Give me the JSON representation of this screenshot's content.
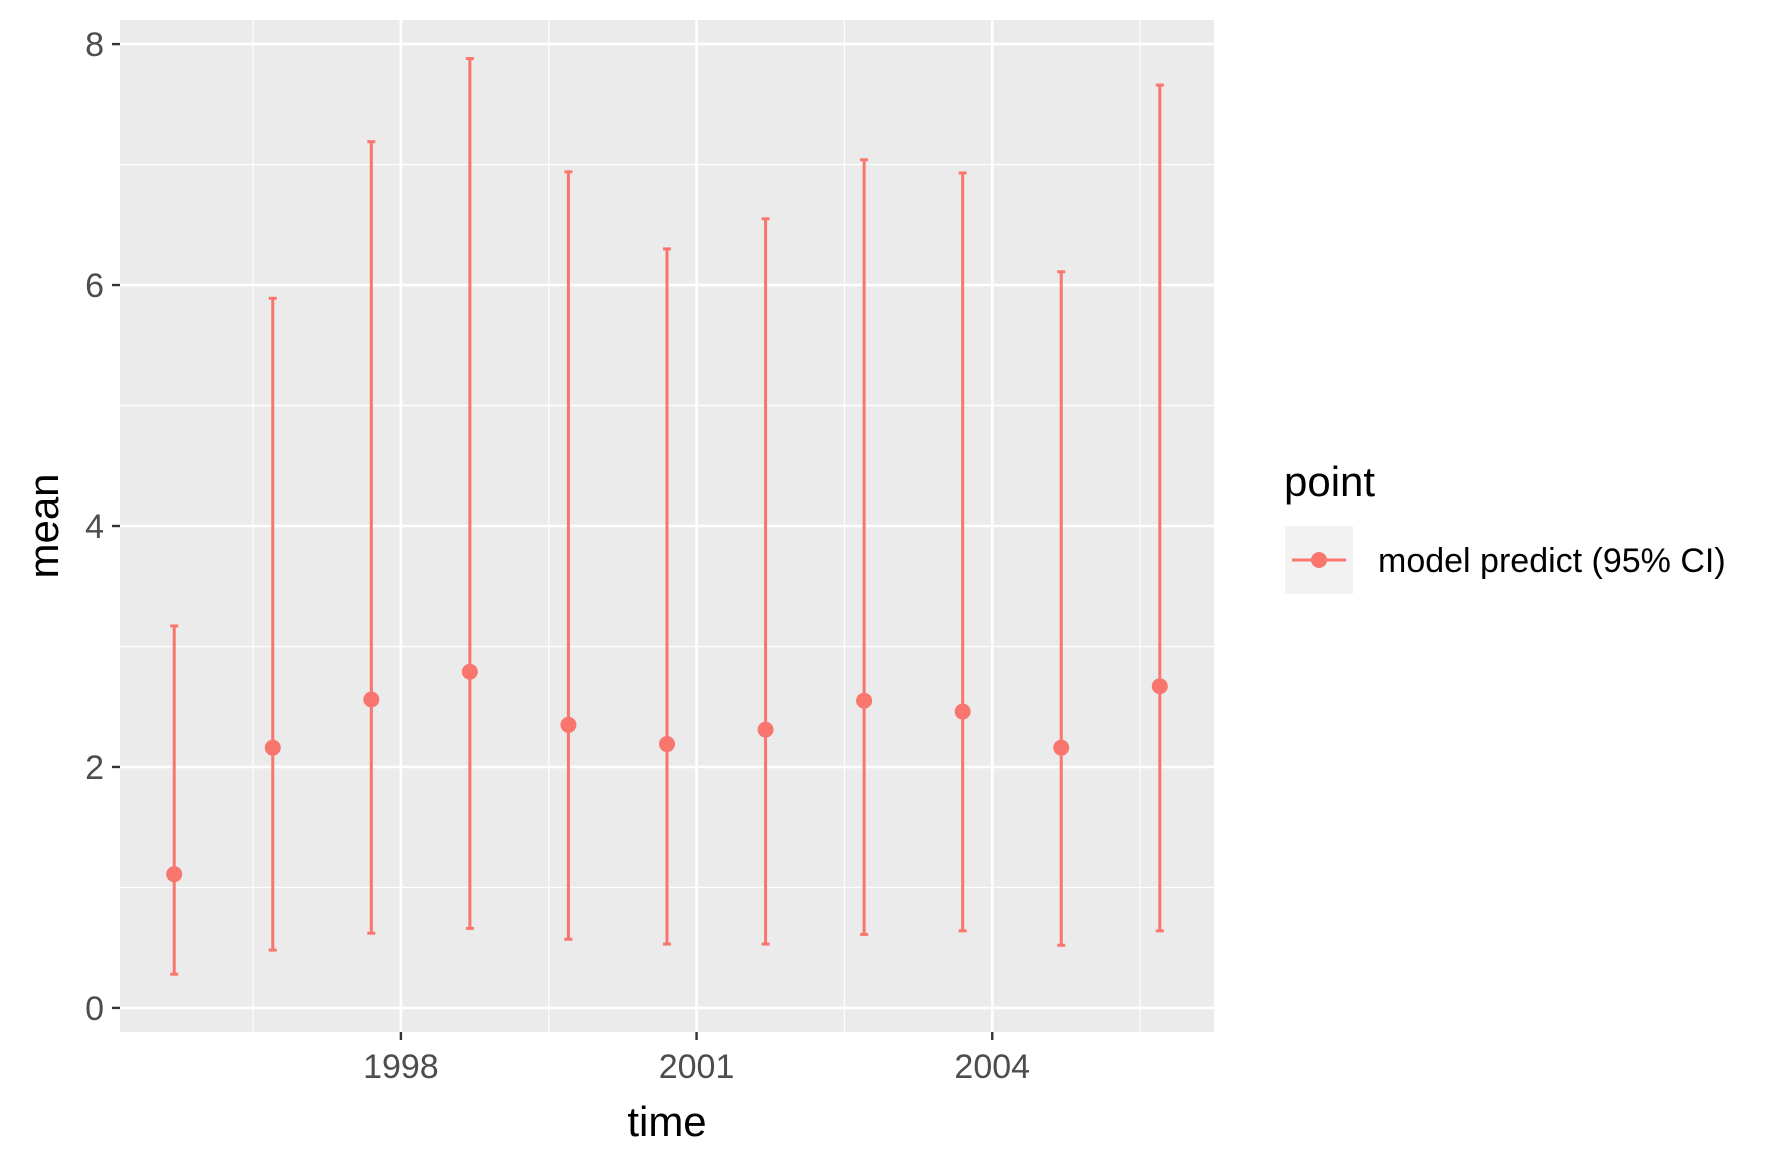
{
  "chart_data": {
    "type": "errorbar",
    "xlabel": "time",
    "ylabel": "mean",
    "xlim": [
      1995.15,
      2006.25
    ],
    "ylim": [
      -0.2,
      8.2
    ],
    "x_ticks": [
      1998,
      2001,
      2004
    ],
    "x_tick_labels": [
      "1998",
      "2001",
      "2004"
    ],
    "y_ticks": [
      0,
      2,
      4,
      6,
      8
    ],
    "y_tick_labels": [
      "0",
      "2",
      "4",
      "6",
      "8"
    ],
    "grid": true,
    "legend": {
      "title": "point",
      "position": "right",
      "entries": [
        {
          "label": "model predict (95% CI)",
          "color": "#F8766D"
        }
      ]
    },
    "series": [
      {
        "name": "model predict (95% CI)",
        "color": "#F8766D",
        "x": [
          1995.7,
          1996.7,
          1997.7,
          1998.7,
          1999.7,
          2000.7,
          2001.7,
          2002.7,
          2003.7,
          2004.7,
          2005.7
        ],
        "y": [
          1.11,
          2.16,
          2.56,
          2.79,
          2.35,
          2.19,
          2.31,
          2.55,
          2.46,
          2.16,
          2.67
        ],
        "lower": [
          0.28,
          0.48,
          0.62,
          0.66,
          0.57,
          0.53,
          0.53,
          0.61,
          0.64,
          0.52,
          0.64
        ],
        "upper": [
          3.17,
          5.89,
          7.19,
          7.88,
          6.94,
          6.3,
          6.55,
          7.04,
          6.93,
          6.11,
          7.66
        ]
      }
    ]
  },
  "colors": {
    "panel_background": "#EBEBEB",
    "grid_major": "#FFFFFF",
    "series": "#F8766D",
    "tick_text": "#4d4d4d"
  }
}
